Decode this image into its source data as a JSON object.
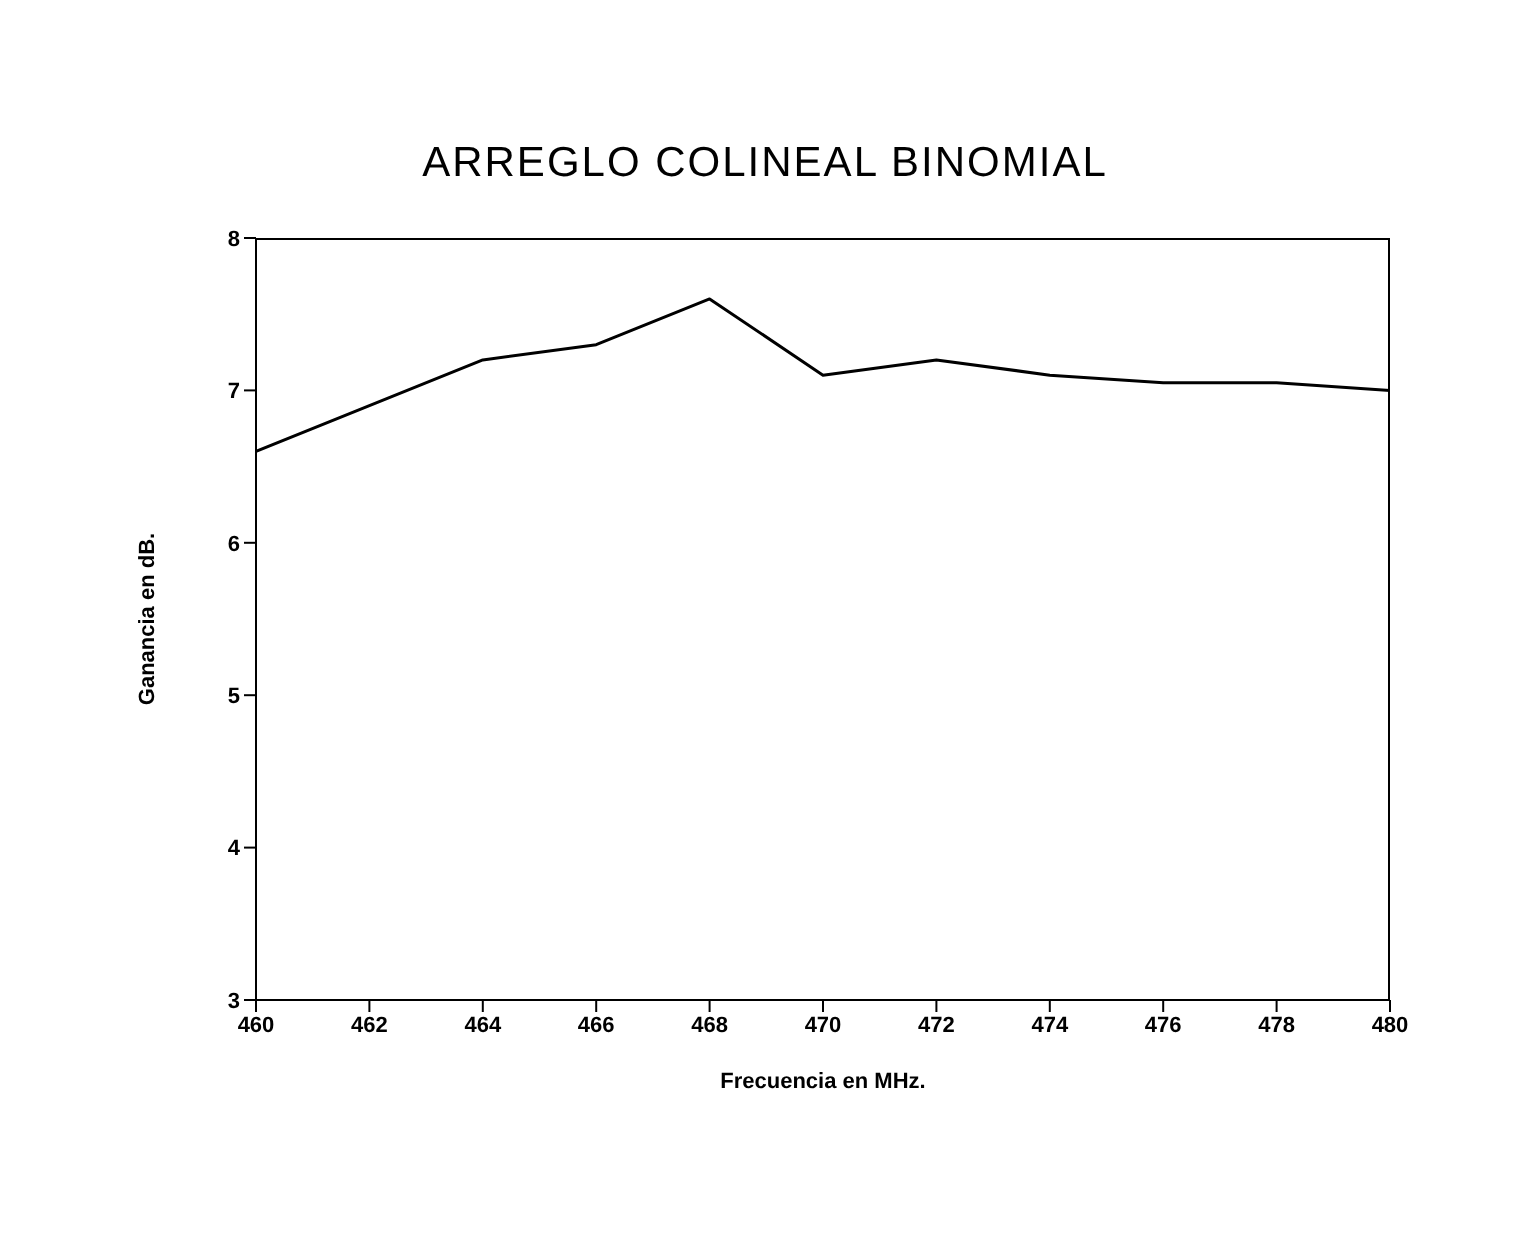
{
  "chart_data": {
    "type": "line",
    "title": "ARREGLO COLINEAL BINOMIAL",
    "xlabel": "Frecuencia en MHz.",
    "ylabel": "Ganancia en dB.",
    "x": [
      460,
      462,
      464,
      466,
      468,
      470,
      472,
      474,
      476,
      478,
      480
    ],
    "series": [
      {
        "color": "#000000",
        "values": [
          6.6,
          6.9,
          7.2,
          7.3,
          7.6,
          7.1,
          7.2,
          7.1,
          7.05,
          7.05,
          7.0
        ]
      }
    ],
    "xlim": [
      460,
      480
    ],
    "xticks": [
      460,
      462,
      464,
      466,
      468,
      470,
      472,
      474,
      476,
      478,
      480
    ],
    "ylim": [
      3,
      8
    ],
    "yticks": [
      3,
      4,
      5,
      6,
      7,
      8
    ],
    "grid": false,
    "legend": false,
    "marker": "none",
    "line_style": "solid"
  }
}
